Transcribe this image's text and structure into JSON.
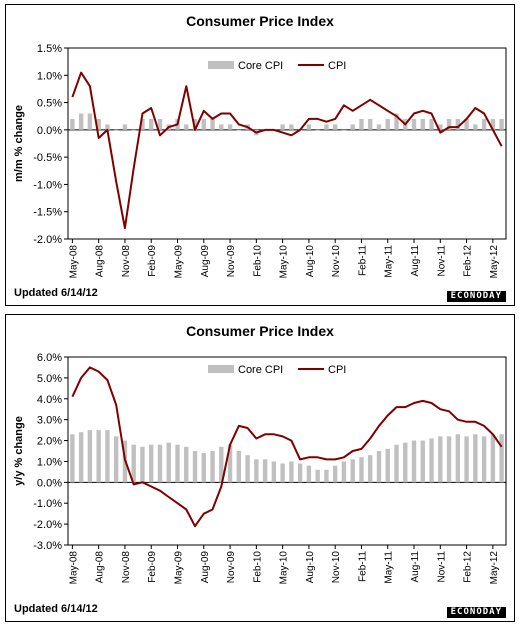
{
  "chart_data": [
    {
      "type": "bar+line",
      "title": "Consumer Price Index",
      "ylabel": "m/m % change",
      "ylim": [
        -2.0,
        1.5
      ],
      "yticks": [
        "1.5%",
        "1.0%",
        "0.5%",
        "0.0%",
        "-0.5%",
        "-1.0%",
        "-1.5%",
        "-2.0%"
      ],
      "ytick_values": [
        1.5,
        1.0,
        0.5,
        0.0,
        -0.5,
        -1.0,
        -1.5,
        -2.0
      ],
      "xticks": [
        "May-08",
        "Aug-08",
        "Nov-08",
        "Feb-09",
        "May-09",
        "Aug-09",
        "Nov-09",
        "Feb-10",
        "May-10",
        "Aug-10",
        "Nov-10",
        "Feb-11",
        "May-11",
        "Aug-11",
        "Nov-11",
        "Feb-12",
        "May-12"
      ],
      "legend": {
        "placement": "top-center",
        "entries": [
          "Core CPI",
          "CPI"
        ]
      },
      "footnote": "Updated 6/14/12",
      "brand": "ECONODAY",
      "series": [
        {
          "name": "Core CPI",
          "type": "bar",
          "color": "#c0c0c0",
          "values": [
            0.2,
            0.3,
            0.3,
            0.2,
            0.1,
            0.0,
            0.1,
            0.0,
            0.2,
            0.2,
            0.2,
            0.1,
            0.2,
            0.1,
            0.2,
            0.2,
            0.2,
            0.1,
            0.1,
            0.0,
            0.1,
            -0.1,
            0.0,
            0.0,
            0.1,
            0.1,
            0.0,
            0.1,
            0.0,
            0.1,
            0.1,
            0.0,
            0.1,
            0.2,
            0.2,
            0.1,
            0.2,
            0.3,
            0.2,
            0.2,
            0.2,
            0.2,
            0.1,
            0.2,
            0.2,
            0.2,
            0.1,
            0.2,
            0.2,
            0.2
          ]
        },
        {
          "name": "CPI",
          "type": "line",
          "color": "#800000",
          "values": [
            0.6,
            1.05,
            0.8,
            -0.15,
            0.0,
            -0.95,
            -1.8,
            -0.7,
            0.3,
            0.4,
            -0.1,
            0.05,
            0.1,
            0.8,
            0.0,
            0.35,
            0.2,
            0.3,
            0.3,
            0.1,
            0.05,
            -0.05,
            0.0,
            0.0,
            -0.05,
            -0.1,
            0.0,
            0.2,
            0.2,
            0.15,
            0.2,
            0.45,
            0.35,
            0.45,
            0.55,
            0.45,
            0.35,
            0.25,
            0.1,
            0.3,
            0.35,
            0.3,
            -0.05,
            0.05,
            0.05,
            0.2,
            0.4,
            0.3,
            0.0,
            -0.3
          ]
        }
      ]
    },
    {
      "type": "bar+line",
      "title": "Consumer Price Index",
      "ylabel": "y/y % change",
      "ylim": [
        -3.0,
        6.0
      ],
      "yticks": [
        "6.0%",
        "5.0%",
        "4.0%",
        "3.0%",
        "2.0%",
        "1.0%",
        "0.0%",
        "-1.0%",
        "-2.0%",
        "-3.0%"
      ],
      "ytick_values": [
        6.0,
        5.0,
        4.0,
        3.0,
        2.0,
        1.0,
        0.0,
        -1.0,
        -2.0,
        -3.0
      ],
      "xticks": [
        "May-08",
        "Aug-08",
        "Nov-08",
        "Feb-09",
        "May-09",
        "Aug-09",
        "Nov-09",
        "Feb-10",
        "May-10",
        "Aug-10",
        "Nov-10",
        "Feb-11",
        "May-11",
        "Aug-11",
        "Nov-11",
        "Feb-12",
        "May-12"
      ],
      "legend": {
        "placement": "top-center",
        "entries": [
          "Core CPI",
          "CPI"
        ]
      },
      "footnote": "Updated 6/14/12",
      "brand": "ECONODAY",
      "series": [
        {
          "name": "Core CPI",
          "type": "bar",
          "color": "#c0c0c0",
          "values": [
            2.3,
            2.4,
            2.5,
            2.5,
            2.5,
            2.2,
            2.0,
            1.8,
            1.7,
            1.8,
            1.8,
            1.9,
            1.8,
            1.7,
            1.5,
            1.4,
            1.5,
            1.7,
            1.8,
            1.5,
            1.3,
            1.1,
            1.1,
            1.0,
            0.9,
            1.0,
            0.9,
            0.8,
            0.6,
            0.6,
            0.8,
            1.0,
            1.1,
            1.2,
            1.3,
            1.5,
            1.6,
            1.8,
            1.9,
            2.0,
            2.0,
            2.1,
            2.2,
            2.2,
            2.3,
            2.2,
            2.3,
            2.2,
            2.3,
            2.3
          ]
        },
        {
          "name": "CPI",
          "type": "line",
          "color": "#800000",
          "values": [
            4.1,
            5.0,
            5.5,
            5.3,
            4.9,
            3.7,
            1.1,
            -0.1,
            0.0,
            -0.2,
            -0.4,
            -0.7,
            -1.0,
            -1.3,
            -2.1,
            -1.5,
            -1.3,
            -0.2,
            1.8,
            2.7,
            2.6,
            2.1,
            2.3,
            2.3,
            2.2,
            2.0,
            1.1,
            1.2,
            1.2,
            1.1,
            1.1,
            1.2,
            1.5,
            1.6,
            2.1,
            2.7,
            3.2,
            3.6,
            3.6,
            3.8,
            3.9,
            3.8,
            3.5,
            3.4,
            3.0,
            2.9,
            2.9,
            2.7,
            2.3,
            1.7
          ]
        }
      ]
    }
  ]
}
